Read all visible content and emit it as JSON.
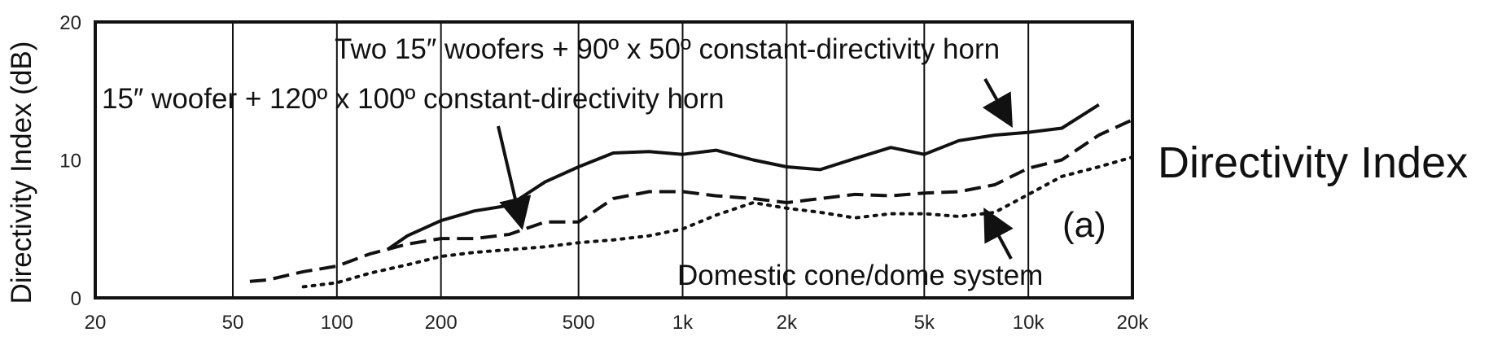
{
  "chart_data": {
    "type": "line",
    "xscale": "log",
    "xlim": [
      20,
      20000
    ],
    "ylim": [
      0,
      20
    ],
    "xticks": [
      {
        "value": 20,
        "label": "20"
      },
      {
        "value": 50,
        "label": "50"
      },
      {
        "value": 100,
        "label": "100"
      },
      {
        "value": 200,
        "label": "200"
      },
      {
        "value": 500,
        "label": "500"
      },
      {
        "value": 1000,
        "label": "1k"
      },
      {
        "value": 2000,
        "label": "2k"
      },
      {
        "value": 5000,
        "label": "5k"
      },
      {
        "value": 10000,
        "label": "10k"
      },
      {
        "value": 20000,
        "label": "20k"
      }
    ],
    "yticks": [
      {
        "value": 0,
        "label": "0"
      },
      {
        "value": 10,
        "label": "10"
      },
      {
        "value": 20,
        "label": "20"
      }
    ],
    "vertical_gridlines_at": [
      50,
      100,
      200,
      500,
      1000,
      2000,
      5000,
      10000
    ],
    "ylabel": "Directivity Index (dB)",
    "side_title": "Directivity Index",
    "panel_label": "(a)",
    "series": [
      {
        "style": "solid",
        "label": "Two 15″ woofers + 90º x 50º constant-directivity horn",
        "x": [
          140,
          160,
          200,
          250,
          315,
          400,
          500,
          630,
          800,
          1000,
          1250,
          1600,
          2000,
          2500,
          3150,
          4000,
          5000,
          6300,
          8000,
          10000,
          12500,
          16000
        ],
        "y": [
          3.5,
          4.5,
          5.6,
          6.3,
          6.7,
          8.4,
          9.5,
          10.5,
          10.6,
          10.4,
          10.7,
          10.0,
          9.5,
          9.3,
          10.1,
          10.9,
          10.4,
          11.4,
          11.8,
          12.0,
          12.3,
          14.0
        ]
      },
      {
        "style": "dashed",
        "label": "15″ woofer + 120º x 100º constant-directivity horn",
        "x": [
          56,
          63,
          80,
          100,
          125,
          160,
          200,
          250,
          315,
          400,
          500,
          630,
          800,
          1000,
          1250,
          1600,
          2000,
          2500,
          3150,
          4000,
          5000,
          6300,
          8000,
          10000,
          12500,
          16000,
          20000
        ],
        "y": [
          1.2,
          1.3,
          1.9,
          2.3,
          3.2,
          3.9,
          4.3,
          4.3,
          4.6,
          5.5,
          5.5,
          7.2,
          7.7,
          7.7,
          7.4,
          7.2,
          6.9,
          7.2,
          7.5,
          7.4,
          7.6,
          7.7,
          8.2,
          9.4,
          10.0,
          11.8,
          12.9
        ]
      },
      {
        "style": "dotted",
        "label": "Domestic cone/dome system",
        "x": [
          80,
          100,
          125,
          160,
          200,
          250,
          315,
          400,
          500,
          630,
          800,
          1000,
          1250,
          1600,
          2000,
          2500,
          3150,
          4000,
          5000,
          6300,
          8000,
          10000,
          12500,
          16000,
          20000
        ],
        "y": [
          0.8,
          1.1,
          1.8,
          2.4,
          3.0,
          3.3,
          3.5,
          3.7,
          4.0,
          4.2,
          4.5,
          5.0,
          6.0,
          6.9,
          6.5,
          6.2,
          5.8,
          6.1,
          6.1,
          5.9,
          6.2,
          7.5,
          8.8,
          9.5,
          10.2
        ]
      }
    ]
  }
}
